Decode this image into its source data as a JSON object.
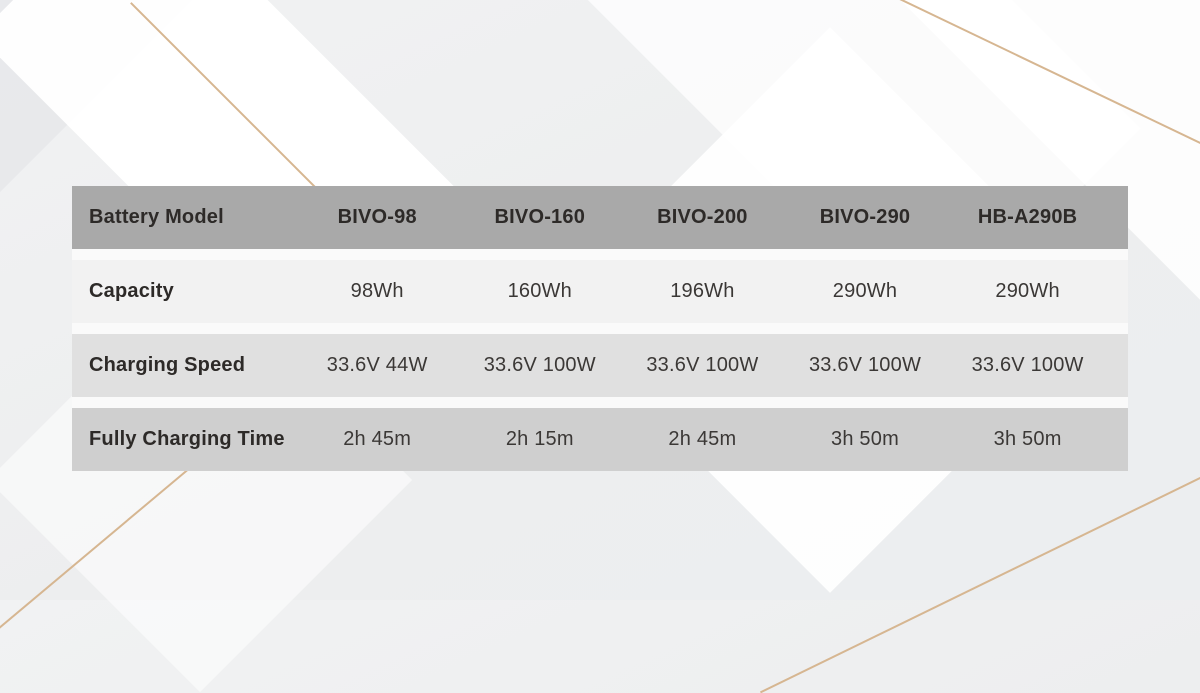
{
  "colors": {
    "header_bg": "#a9a9a9",
    "capacity_row_bg": "#f2f2f2",
    "speed_row_bg": "#e0e0e0",
    "time_row_bg": "#cfcfcf",
    "text_dark": "#2d2a28",
    "accent_gold": "#d6b691",
    "background_base": "#eeeff0"
  },
  "chart_data": {
    "type": "table",
    "header": [
      "Battery Model",
      "BIVO-98",
      "BIVO-160",
      "BIVO-200",
      "BIVO-290",
      "HB-A290B"
    ],
    "rows": [
      {
        "label": "Capacity",
        "values": [
          "98Wh",
          "160Wh",
          "196Wh",
          "290Wh",
          "290Wh"
        ]
      },
      {
        "label": "Charging Speed",
        "values": [
          "33.6V 44W",
          "33.6V 100W",
          "33.6V 100W",
          "33.6V 100W",
          "33.6V 100W"
        ]
      },
      {
        "label": "Fully Charging Time",
        "values": [
          "2h 45m",
          "2h 15m",
          "2h 45m",
          "3h 50m",
          "3h 50m"
        ]
      }
    ]
  }
}
